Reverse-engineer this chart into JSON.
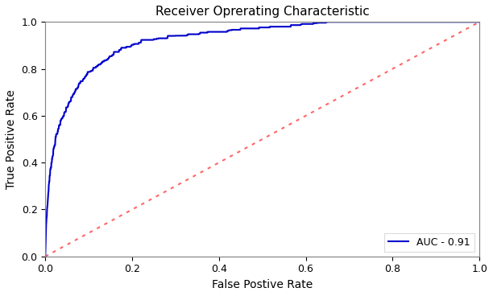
{
  "title": "Receiver Oprerating Characteristic",
  "xlabel": "False Postive Rate",
  "ylabel": "True Positive Rate",
  "auc": 0.91,
  "legend_label": "AUC - 0.91",
  "roc_color": "#0000CC",
  "diagonal_color": "#FF6666",
  "diagonal_linestyle": ":",
  "xlim": [
    0.0,
    1.0
  ],
  "ylim": [
    0.0,
    1.0
  ],
  "xticks": [
    0.0,
    0.2,
    0.4,
    0.6,
    0.8,
    1.0
  ],
  "yticks": [
    0.0,
    0.2,
    0.4,
    0.6,
    0.8,
    1.0
  ],
  "title_fontsize": 11,
  "label_fontsize": 10,
  "tick_fontsize": 9,
  "background_color": "#ffffff",
  "roc_linewidth": 1.5,
  "diagonal_linewidth": 1.5,
  "key_fpr": [
    0.0,
    0.001,
    0.002,
    0.005,
    0.008,
    0.012,
    0.018,
    0.025,
    0.035,
    0.05,
    0.07,
    0.1,
    0.13,
    0.17,
    0.22,
    0.3,
    0.4,
    0.55,
    0.7,
    1.0
  ],
  "key_tpr": [
    0.0,
    0.08,
    0.14,
    0.22,
    0.3,
    0.37,
    0.44,
    0.51,
    0.57,
    0.63,
    0.71,
    0.78,
    0.82,
    0.87,
    0.91,
    0.93,
    0.95,
    0.97,
    1.0,
    1.0
  ]
}
